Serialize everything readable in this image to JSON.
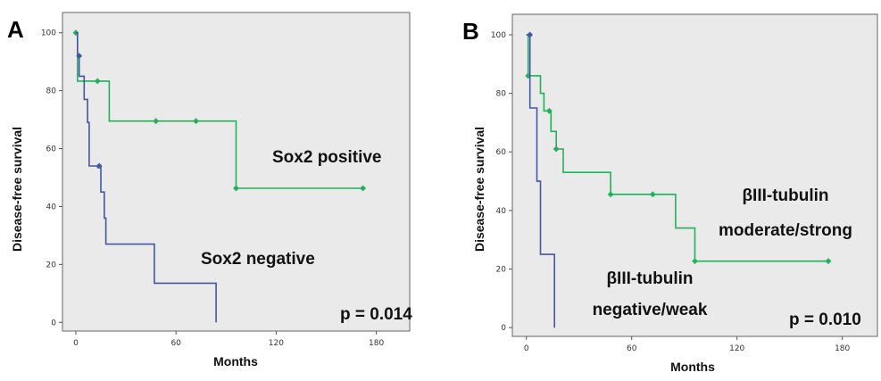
{
  "chart_data": [
    {
      "type": "line",
      "panel_label": "A",
      "xlabel": "Months",
      "ylabel": "Disease-free survival",
      "xticks": [
        0,
        60,
        120,
        180
      ],
      "yticks": [
        0,
        20,
        40,
        60,
        80,
        100
      ],
      "xlim": [
        -8,
        200
      ],
      "ylim": [
        -3,
        107
      ],
      "grid": false,
      "background": "#eaeaea",
      "series": [
        {
          "color": "#22b05b",
          "steps": [
            [
              0,
              100
            ],
            [
              1,
              100
            ],
            [
              1,
              83.3
            ],
            [
              20,
              83.3
            ],
            [
              20,
              69.5
            ],
            [
              96,
              69.5
            ],
            [
              96,
              46.3
            ],
            [
              172,
              46.3
            ]
          ],
          "censored": [
            [
              0,
              100
            ],
            [
              13,
              83.3
            ],
            [
              48,
              69.5
            ],
            [
              72,
              69.5
            ],
            [
              96,
              46.3
            ],
            [
              172,
              46.3
            ]
          ]
        },
        {
          "color": "#4457a0",
          "steps": [
            [
              0,
              100
            ],
            [
              1,
              100
            ],
            [
              1,
              92
            ],
            [
              2,
              92
            ],
            [
              2,
              85
            ],
            [
              5,
              85
            ],
            [
              5,
              77
            ],
            [
              7,
              77
            ],
            [
              7,
              69
            ],
            [
              8,
              69
            ],
            [
              8,
              54
            ],
            [
              13,
              54
            ],
            [
              13,
              53.5
            ],
            [
              15,
              53.5
            ],
            [
              15,
              45
            ],
            [
              17,
              45
            ],
            [
              17,
              36
            ],
            [
              18,
              36
            ],
            [
              18,
              27
            ],
            [
              47,
              27
            ],
            [
              47,
              13.5
            ],
            [
              84,
              13.5
            ],
            [
              84,
              0
            ]
          ],
          "censored": [
            [
              2,
              92
            ],
            [
              14,
              54
            ]
          ]
        }
      ],
      "annotations": [
        "Sox2 positive",
        "Sox2 negative",
        "p = 0.014"
      ]
    },
    {
      "type": "line",
      "panel_label": "B",
      "xlabel": "Months",
      "ylabel": "Disease-free survival",
      "xticks": [
        0,
        60,
        120,
        180
      ],
      "yticks": [
        0,
        20,
        40,
        60,
        80,
        100
      ],
      "xlim": [
        -8,
        200
      ],
      "ylim": [
        -3,
        107
      ],
      "grid": false,
      "background": "#eaeaea",
      "series": [
        {
          "color": "#22b05b",
          "steps": [
            [
              0,
              100
            ],
            [
              1,
              100
            ],
            [
              1,
              86
            ],
            [
              8,
              86
            ],
            [
              8,
              80
            ],
            [
              10,
              80
            ],
            [
              10,
              74
            ],
            [
              14,
              74
            ],
            [
              14,
              67
            ],
            [
              17,
              67
            ],
            [
              17,
              61
            ],
            [
              21,
              61
            ],
            [
              21,
              53
            ],
            [
              48,
              53
            ],
            [
              48,
              45.5
            ],
            [
              85,
              45.5
            ],
            [
              85,
              34
            ],
            [
              96,
              34
            ],
            [
              96,
              22.7
            ],
            [
              172,
              22.7
            ]
          ],
          "censored": [
            [
              1,
              86
            ],
            [
              13,
              74
            ],
            [
              17,
              61
            ],
            [
              48,
              45.5
            ],
            [
              72,
              45.5
            ],
            [
              96,
              22.7
            ],
            [
              172,
              22.7
            ]
          ]
        },
        {
          "color": "#4457a0",
          "steps": [
            [
              0,
              100
            ],
            [
              2,
              100
            ],
            [
              2,
              75
            ],
            [
              6,
              75
            ],
            [
              6,
              50
            ],
            [
              8,
              50
            ],
            [
              8,
              25
            ],
            [
              16,
              25
            ],
            [
              16,
              0
            ]
          ],
          "censored": [
            [
              2,
              100
            ]
          ]
        }
      ],
      "annotations": [
        "βIII-tubulin",
        "moderate/strong",
        "βIII-tubulin",
        "negative/weak",
        "p = 0.010"
      ]
    }
  ]
}
